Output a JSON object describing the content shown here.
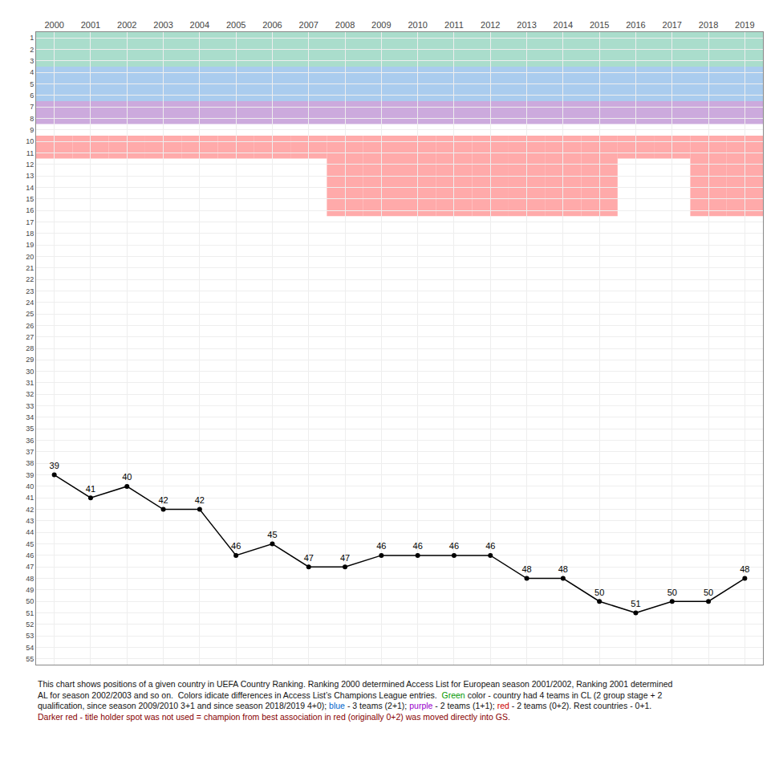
{
  "chart_data": {
    "type": "line",
    "x": [
      2000,
      2001,
      2002,
      2003,
      2004,
      2005,
      2006,
      2007,
      2008,
      2009,
      2010,
      2011,
      2012,
      2013,
      2014,
      2015,
      2016,
      2017,
      2018,
      2019
    ],
    "values": [
      39,
      41,
      40,
      42,
      42,
      46,
      45,
      47,
      47,
      46,
      46,
      46,
      46,
      48,
      48,
      50,
      51,
      50,
      50,
      48
    ],
    "color": "#000000",
    "marker": "circle",
    "data_labels": true,
    "grid": true,
    "xlim": [
      1999.5,
      2019.5
    ],
    "xticks": [
      2000,
      2001,
      2002,
      2003,
      2004,
      2005,
      2006,
      2007,
      2008,
      2009,
      2010,
      2011,
      2012,
      2013,
      2014,
      2015,
      2016,
      2017,
      2018,
      2019
    ],
    "ylim": [
      55.5,
      0.5
    ],
    "yticks": [
      1,
      2,
      3,
      4,
      5,
      6,
      7,
      8,
      9,
      10,
      11,
      12,
      13,
      14,
      15,
      16,
      17,
      18,
      19,
      20,
      21,
      22,
      23,
      24,
      25,
      26,
      27,
      28,
      29,
      30,
      31,
      32,
      33,
      34,
      35,
      36,
      37,
      38,
      39,
      40,
      41,
      42,
      43,
      44,
      45,
      46,
      47,
      48,
      49,
      50,
      51,
      52,
      53,
      54,
      55
    ],
    "bands": [
      {
        "rows": [
          1,
          2,
          3
        ],
        "color": "#aaddcc"
      },
      {
        "rows": [
          4,
          5,
          6
        ],
        "color": "#aaccee"
      },
      {
        "rows": [
          7,
          8
        ],
        "color": "#ccaadd"
      },
      {
        "rows": [
          10,
          11
        ],
        "x": [
          2000,
          2001,
          2002,
          2003,
          2004,
          2005,
          2006,
          2007,
          2016,
          2017
        ],
        "color": "#ffaaaa"
      },
      {
        "rows": [
          10,
          11,
          12,
          13,
          14,
          15,
          16
        ],
        "x": [
          2008,
          2009,
          2010,
          2011,
          2012,
          2013,
          2014,
          2015,
          2018,
          2019
        ],
        "color": "#ffaaaa"
      }
    ],
    "annotations": [
      [
        {
          "text": "This chart shows positions of a given country in UEFA Country Ranking. Ranking 2000 determined Access List for European season 2001/2002, Ranking 2001 determined",
          "color": "#111111"
        }
      ],
      [
        {
          "text": "AL for season 2002/2003 and so on.  Colors idicate differences in Access List’s Champions League entries.  ",
          "color": "#111111"
        },
        {
          "text": "Green",
          "color": "#009900"
        },
        {
          "text": " color - country had 4 teams in CL (2 group stage + 2",
          "color": "#111111"
        }
      ],
      [
        {
          "text": "qualification, since season 2009/2010 3+1 and since season 2018/2019 4+0); ",
          "color": "#111111"
        },
        {
          "text": "blue",
          "color": "#0066cc"
        },
        {
          "text": " - 3 teams (2+1); ",
          "color": "#111111"
        },
        {
          "text": "purple",
          "color": "#9900cc"
        },
        {
          "text": " - 2 teams (1+1); ",
          "color": "#111111"
        },
        {
          "text": "red",
          "color": "#cc0000"
        },
        {
          "text": " - 2 teams (0+2). Rest countries - 0+1.",
          "color": "#111111"
        }
      ],
      [
        {
          "text": "Darker red - title holder spot was not used = champion from best association in red (originally 0+2) was moved directly into GS.",
          "color": "#880000"
        }
      ]
    ]
  }
}
